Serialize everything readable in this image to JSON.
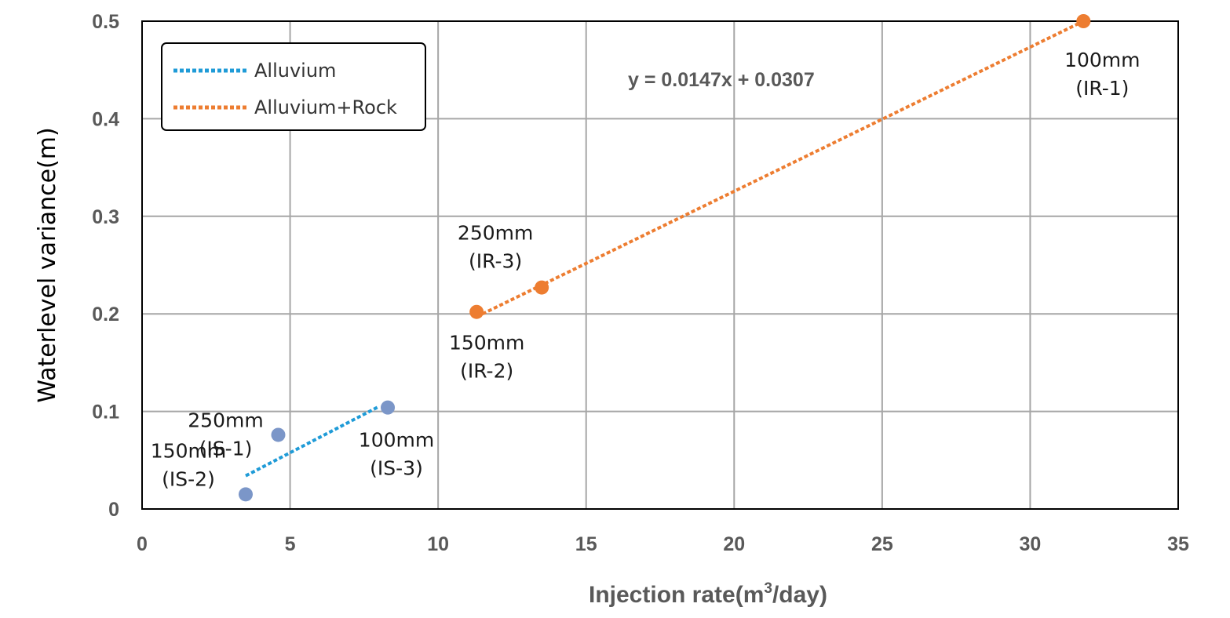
{
  "chart_data": {
    "type": "scatter",
    "title": "",
    "xlabel": "Injection rate(m",
    "xlabel_sup": "3",
    "xlabel_tail": "/day)",
    "ylabel": "Waterlevel variance(m)",
    "xlim": [
      0,
      35
    ],
    "ylim": [
      0,
      0.5
    ],
    "xticks": [
      0,
      5,
      10,
      15,
      20,
      25,
      30,
      35
    ],
    "yticks": [
      0,
      0.1,
      0.2,
      0.3,
      0.4,
      0.5
    ],
    "xtick_labels": [
      "0",
      "5",
      "10",
      "15",
      "20",
      "25",
      "30",
      "35"
    ],
    "ytick_labels": [
      "0",
      "0.1",
      "0.2",
      "0.3",
      "0.4",
      "0.5"
    ],
    "grid": true,
    "legend_position": "top-left",
    "series": [
      {
        "name": "Alluvium",
        "color": "#1f9bd7",
        "marker_color": "#7b96c8",
        "points": [
          {
            "x": 3.5,
            "y": 0.015,
            "label1": "150mm",
            "label2": "(IS-2)"
          },
          {
            "x": 4.6,
            "y": 0.076,
            "label1": "250mm",
            "label2": "(IS-1)"
          },
          {
            "x": 8.3,
            "y": 0.104,
            "label1": "100mm",
            "label2": "(IS-3)"
          }
        ],
        "trendline": {
          "x": [
            3.5,
            8.0
          ],
          "y": [
            0.034,
            0.105
          ]
        }
      },
      {
        "name": "Alluvium+Rock",
        "color": "#ed7d31",
        "marker_color": "#ed7d31",
        "points": [
          {
            "x": 11.3,
            "y": 0.202,
            "label1": "150mm",
            "label2": "(IR-2)"
          },
          {
            "x": 13.5,
            "y": 0.227,
            "label1": "250mm",
            "label2": "(IR-3)"
          },
          {
            "x": 31.8,
            "y": 0.5,
            "label1": "100mm",
            "label2": "(IR-1)"
          }
        ],
        "trendline": {
          "x": [
            11.5,
            31.8
          ],
          "y": [
            0.2,
            0.5
          ]
        }
      }
    ],
    "annotation": "y = 0.0147x + 0.0307"
  }
}
